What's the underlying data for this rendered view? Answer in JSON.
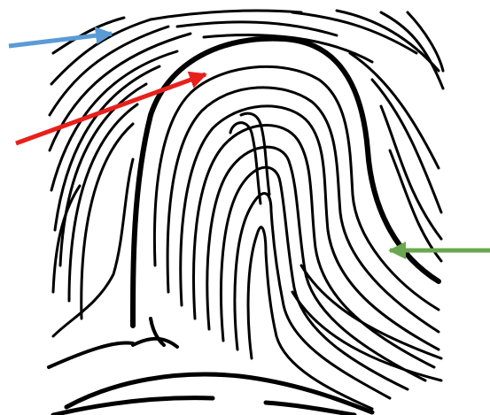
{
  "figure": {
    "background_color": "#ffffff",
    "ridge_color": "#000000",
    "arrows": [
      {
        "name": "blue-arrow",
        "color": "#5b9bd5"
      },
      {
        "name": "red-arrow",
        "color": "#e8201c"
      },
      {
        "name": "green-arrow",
        "color": "#6aa84f"
      }
    ]
  }
}
